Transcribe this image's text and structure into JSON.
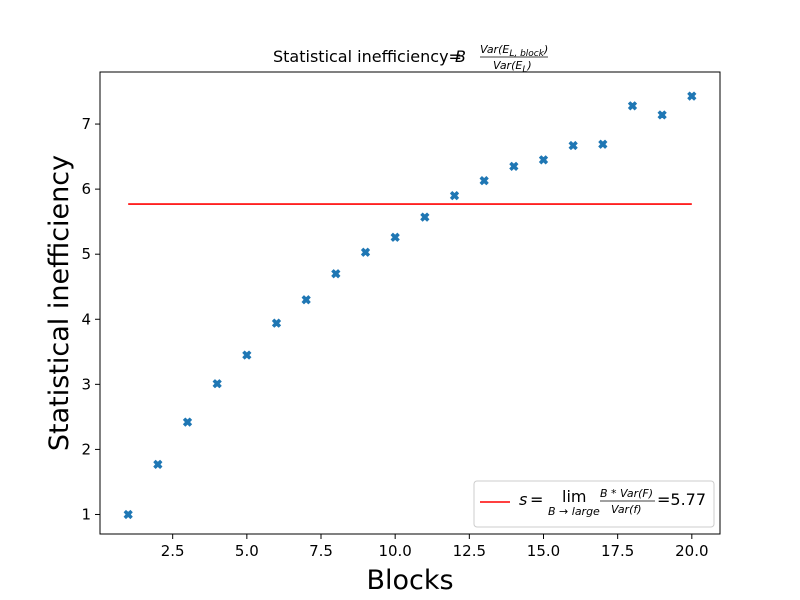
{
  "chart_data": {
    "type": "scatter",
    "title_prefix": "Statistical inefficiency=",
    "title_formula": {
      "B": "B",
      "numerator": "Var(E",
      "numerator_sub": "L, block",
      "denominator": "Var(E",
      "denominator_sub": "L"
    },
    "xlabel": "Blocks",
    "ylabel": "Statistical inefficiency",
    "xlim": [
      0.05,
      20.95
    ],
    "ylim": [
      0.7,
      7.8
    ],
    "xticks": [
      2.5,
      5.0,
      7.5,
      10.0,
      12.5,
      15.0,
      17.5,
      20.0
    ],
    "xtick_labels": [
      "2.5",
      "5.0",
      "7.5",
      "10.0",
      "12.5",
      "15.0",
      "17.5",
      "20.0"
    ],
    "yticks": [
      1,
      2,
      3,
      4,
      5,
      6,
      7
    ],
    "ytick_labels": [
      "1",
      "2",
      "3",
      "4",
      "5",
      "6",
      "7"
    ],
    "grid": false,
    "marker": "X",
    "marker_color": "#1f77b4",
    "series": [
      {
        "x": [
          1,
          2,
          3,
          4,
          5,
          6,
          7,
          8,
          9,
          10,
          11,
          12,
          13,
          14,
          15,
          16,
          17,
          18,
          19,
          20
        ],
        "y": [
          1.0,
          1.77,
          2.42,
          3.01,
          3.45,
          3.94,
          4.3,
          4.7,
          5.03,
          5.26,
          5.57,
          5.9,
          6.13,
          6.35,
          6.45,
          6.67,
          6.69,
          7.28,
          7.14,
          7.43
        ]
      }
    ],
    "hline": {
      "y": 5.77,
      "x_from": 1,
      "x_to": 20,
      "color": "#ff0000"
    },
    "legend": {
      "location": "lower right",
      "s": "s",
      "eq": "=",
      "lim": "lim",
      "lim_sub": "B → large",
      "frac_num": "B * Var(F)",
      "frac_den": "Var(f)",
      "value": "=5.77"
    }
  }
}
